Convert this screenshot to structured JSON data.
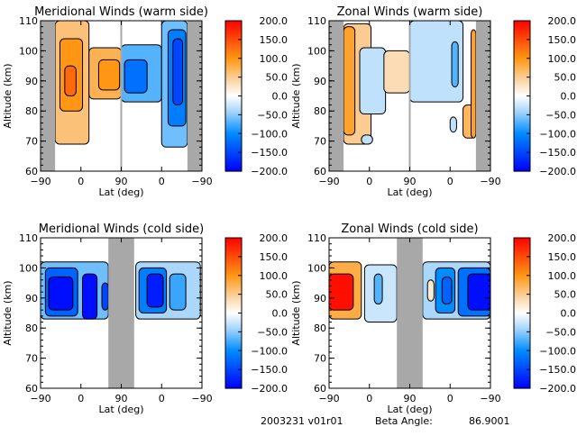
{
  "chart_data": [
    {
      "type": "heatmap",
      "id": "meridional-warm",
      "title": "Meridional Winds (warm side)",
      "xlabel": "Lat (deg)",
      "ylabel": "Altitude (km)",
      "x_tick_labels": [
        "-90",
        "0",
        "90",
        "0",
        "-90"
      ],
      "y_ticks": [
        60,
        70,
        80,
        90,
        100,
        110
      ],
      "ylim": [
        60,
        110
      ],
      "colorbar": {
        "min": -200,
        "max": 200,
        "tick_labels": [
          "200.0",
          "150.0",
          "100.0",
          "50.0",
          "0.0",
          "-50.0",
          "-100.0",
          "-150.0",
          "-200.0"
        ]
      },
      "no_data_bands": [
        [
          0,
          0.09
        ],
        [
          0.91,
          1.0
        ]
      ],
      "divider": 0.5,
      "regions": [
        {
          "x0": 0.09,
          "x1": 0.3,
          "y0": 69,
          "y1": 110,
          "value": 60
        },
        {
          "x0": 0.12,
          "x1": 0.26,
          "y0": 80,
          "y1": 104,
          "value": 100
        },
        {
          "x0": 0.15,
          "x1": 0.22,
          "y0": 85,
          "y1": 95,
          "value": 130
        },
        {
          "x0": 0.3,
          "x1": 0.5,
          "y0": 84,
          "y1": 101,
          "value": 75
        },
        {
          "x0": 0.36,
          "x1": 0.49,
          "y0": 87,
          "y1": 97,
          "value": 100
        },
        {
          "x0": 0.5,
          "x1": 0.75,
          "y0": 83,
          "y1": 102,
          "value": -70
        },
        {
          "x0": 0.52,
          "x1": 0.66,
          "y0": 86,
          "y1": 97,
          "value": -120
        },
        {
          "x0": 0.75,
          "x1": 0.91,
          "y0": 68,
          "y1": 110,
          "value": -60
        },
        {
          "x0": 0.79,
          "x1": 0.9,
          "y0": 75,
          "y1": 107,
          "value": -110
        },
        {
          "x0": 0.82,
          "x1": 0.88,
          "y0": 82,
          "y1": 104,
          "value": -150
        }
      ]
    },
    {
      "type": "heatmap",
      "id": "zonal-warm",
      "title": "Zonal Winds (warm side)",
      "xlabel": "Lat (deg)",
      "ylabel": "Altitude (km)",
      "x_tick_labels": [
        "-90",
        "0",
        "90",
        "0",
        "-90"
      ],
      "y_ticks": [
        60,
        70,
        80,
        90,
        100,
        110
      ],
      "ylim": [
        60,
        110
      ],
      "colorbar": {
        "min": -200,
        "max": 200,
        "tick_labels": [
          "200.0",
          "150.0",
          "100.0",
          "50.0",
          "0.0",
          "-50.0",
          "-100.0",
          "-150.0",
          "-200.0"
        ]
      },
      "no_data_bands": [
        [
          0,
          0.09
        ],
        [
          0.91,
          1.0
        ]
      ],
      "divider": 0.5,
      "regions": [
        {
          "x0": 0.09,
          "x1": 0.26,
          "y0": 69,
          "y1": 109,
          "value": 50
        },
        {
          "x0": 0.09,
          "x1": 0.16,
          "y0": 72,
          "y1": 108,
          "value": 90
        },
        {
          "x0": 0.19,
          "x1": 0.35,
          "y0": 79,
          "y1": 101,
          "value": -30
        },
        {
          "x0": 0.2,
          "x1": 0.27,
          "y0": 69,
          "y1": 72,
          "value": -30
        },
        {
          "x0": 0.34,
          "x1": 0.5,
          "y0": 86,
          "y1": 100,
          "value": 35
        },
        {
          "x0": 0.5,
          "x1": 0.83,
          "y0": 83,
          "y1": 110,
          "value": -30
        },
        {
          "x0": 0.76,
          "x1": 0.8,
          "y0": 88,
          "y1": 103,
          "value": -70
        },
        {
          "x0": 0.75,
          "x1": 0.79,
          "y0": 73,
          "y1": 78,
          "value": -30
        },
        {
          "x0": 0.83,
          "x1": 0.91,
          "y0": 71,
          "y1": 82,
          "value": 70
        },
        {
          "x0": 0.88,
          "x1": 0.91,
          "y0": 71,
          "y1": 107,
          "value": 90
        }
      ]
    },
    {
      "type": "heatmap",
      "id": "meridional-cold",
      "title": "Meridional Winds (cold side)",
      "xlabel": "Lat (deg)",
      "ylabel": "Altitude (km)",
      "x_tick_labels": [
        "-90",
        "0",
        "90",
        "0",
        "-90"
      ],
      "y_ticks": [
        60,
        70,
        80,
        90,
        100,
        110
      ],
      "ylim": [
        60,
        110
      ],
      "colorbar": {
        "min": -200,
        "max": 200,
        "tick_labels": [
          "200.0",
          "150.0",
          "100.0",
          "50.0",
          "0.0",
          "-50.0",
          "-100.0",
          "-150.0",
          "-200.0"
        ]
      },
      "no_data_bands": [
        [
          0.42,
          0.58
        ]
      ],
      "divider": null,
      "regions": [
        {
          "x0": 0.0,
          "x1": 0.42,
          "y0": 83,
          "y1": 102,
          "value": -60
        },
        {
          "x0": 0.03,
          "x1": 0.23,
          "y0": 84,
          "y1": 100,
          "value": -130
        },
        {
          "x0": 0.05,
          "x1": 0.2,
          "y0": 86,
          "y1": 97,
          "value": -190
        },
        {
          "x0": 0.26,
          "x1": 0.35,
          "y0": 83,
          "y1": 98,
          "value": -190
        },
        {
          "x0": 0.38,
          "x1": 0.42,
          "y0": 86,
          "y1": 95,
          "value": -150
        },
        {
          "x0": 0.59,
          "x1": 0.99,
          "y0": 83,
          "y1": 102,
          "value": -40
        },
        {
          "x0": 0.61,
          "x1": 0.78,
          "y0": 85,
          "y1": 100,
          "value": -110
        },
        {
          "x0": 0.66,
          "x1": 0.76,
          "y0": 87,
          "y1": 98,
          "value": -180
        },
        {
          "x0": 0.8,
          "x1": 0.9,
          "y0": 86,
          "y1": 98,
          "value": -80
        }
      ]
    },
    {
      "type": "heatmap",
      "id": "zonal-cold",
      "title": "Zonal Winds (cold side)",
      "xlabel": "Lat (deg)",
      "ylabel": "Altitude (km)",
      "x_tick_labels": [
        "-90",
        "0",
        "90",
        "0",
        "-90"
      ],
      "y_ticks": [
        60,
        70,
        80,
        90,
        100,
        110
      ],
      "ylim": [
        60,
        110
      ],
      "colorbar": {
        "min": -200,
        "max": 200,
        "tick_labels": [
          "200.0",
          "150.0",
          "100.0",
          "50.0",
          "0.0",
          "-50.0",
          "-100.0",
          "-150.0",
          "-200.0"
        ]
      },
      "no_data_bands": [
        [
          0.42,
          0.58
        ]
      ],
      "divider": null,
      "regions": [
        {
          "x0": 0.0,
          "x1": 0.2,
          "y0": 83,
          "y1": 102,
          "value": 80
        },
        {
          "x0": 0.0,
          "x1": 0.15,
          "y0": 86,
          "y1": 98,
          "value": 190
        },
        {
          "x0": 0.22,
          "x1": 0.42,
          "y0": 82,
          "y1": 101,
          "value": -25
        },
        {
          "x0": 0.28,
          "x1": 0.33,
          "y0": 88,
          "y1": 98,
          "value": -70
        },
        {
          "x0": 0.58,
          "x1": 1.0,
          "y0": 83,
          "y1": 102,
          "value": -40
        },
        {
          "x0": 0.66,
          "x1": 0.78,
          "y0": 85,
          "y1": 100,
          "value": -100
        },
        {
          "x0": 0.7,
          "x1": 0.76,
          "y0": 88,
          "y1": 97,
          "value": -130
        },
        {
          "x0": 0.8,
          "x1": 1.0,
          "y0": 84,
          "y1": 100,
          "value": -120
        },
        {
          "x0": 0.86,
          "x1": 1.0,
          "y0": 86,
          "y1": 98,
          "value": -190
        },
        {
          "x0": 0.61,
          "x1": 0.65,
          "y0": 89,
          "y1": 96,
          "value": 20
        }
      ]
    }
  ],
  "footer": {
    "date_version": "2003231 v01r01",
    "beta_label": "Beta Angle:",
    "beta_value": "86.9001"
  }
}
